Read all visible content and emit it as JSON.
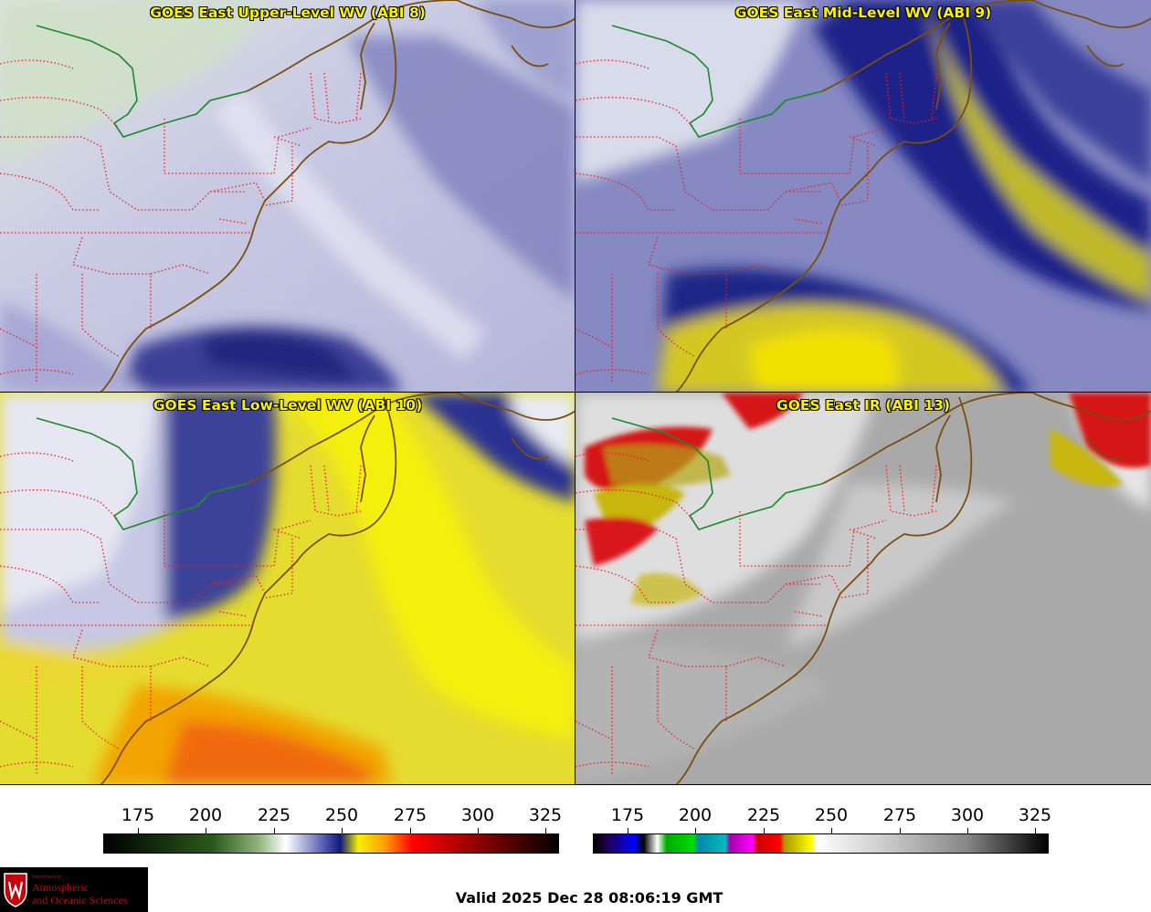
{
  "panels": [
    {
      "title": "GOES East Upper-Level WV (ABI 8)"
    },
    {
      "title": "GOES East Mid-Level WV (ABI 9)"
    },
    {
      "title": "GOES East Low-Level WV (ABI 10)"
    },
    {
      "title": "GOES East IR (ABI 13)"
    }
  ],
  "colorbars": {
    "wv": {
      "ticks": [
        "175",
        "200",
        "225",
        "250",
        "275",
        "300",
        "325"
      ]
    },
    "ir": {
      "ticks": [
        "175",
        "200",
        "225",
        "250",
        "275",
        "300",
        "325"
      ]
    }
  },
  "colors": {
    "border_state": "#e0202a",
    "coastline": "#7a4e0c",
    "great_lakes_border": "#1a8a2a",
    "title_text": "#f8f200"
  },
  "logo": {
    "small": "Department of",
    "line1": "Atmospheric",
    "line2": "and Oceanic Sciences",
    "icon": "uw-crest-icon"
  },
  "valid_time": "Valid 2025 Dec 28 08:06:19 GMT"
}
